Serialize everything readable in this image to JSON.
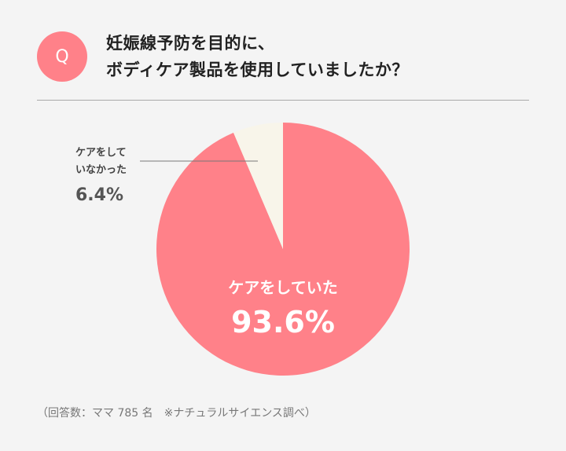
{
  "question": {
    "badge": "Q",
    "line1": "妊娠線予防を目的に、",
    "line2": "ボディケア製品を使用していましたか？"
  },
  "chart_data": {
    "type": "pie",
    "title": "妊娠線予防を目的に、ボディケア製品を使用していましたか？",
    "slices": [
      {
        "label": "ケアをしていた",
        "value": 93.6,
        "value_label": "93.6%",
        "color": "#ff8189"
      },
      {
        "label_line1": "ケアをして",
        "label_line2": "いなかった",
        "value": 6.4,
        "value_label": "6.4%",
        "color": "#f8f5ea"
      }
    ]
  },
  "footnote": "（回答数：ママ 785 名　※ナチュラルサイエンス調べ）"
}
